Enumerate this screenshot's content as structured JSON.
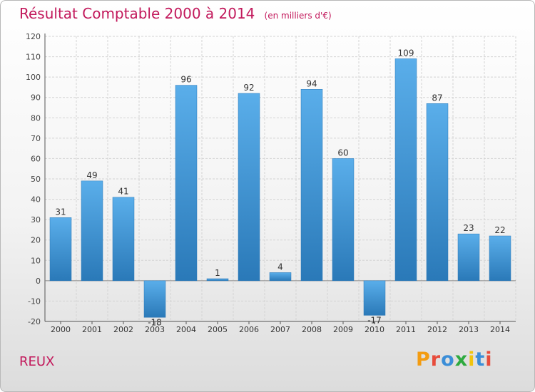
{
  "header": {
    "title": "Résultat Comptable 2000 à 2014",
    "subtitle": "(en milliers d'€)"
  },
  "commune": "REUX",
  "logo": {
    "letters": [
      "P",
      "r",
      "o",
      "x",
      "i",
      "t",
      "i"
    ],
    "colors": [
      "#f39c12",
      "#e74c3c",
      "#3b8ed8",
      "#2eaa3f",
      "#f1c40f",
      "#3b8ed8",
      "#e74c3c"
    ]
  },
  "chart_data": {
    "type": "bar",
    "title": "Résultat Comptable 2000 à 2014",
    "subtitle": "(en milliers d'€)",
    "xlabel": "",
    "ylabel": "",
    "categories": [
      "2000",
      "2001",
      "2002",
      "2003",
      "2004",
      "2005",
      "2006",
      "2007",
      "2008",
      "2009",
      "2010",
      "2011",
      "2012",
      "2013",
      "2014"
    ],
    "values": [
      31,
      49,
      41,
      -18,
      96,
      1,
      92,
      4,
      94,
      60,
      -17,
      109,
      87,
      23,
      22
    ],
    "ylim": [
      -20,
      120
    ],
    "yticks": [
      -20,
      -10,
      0,
      10,
      20,
      30,
      40,
      50,
      60,
      70,
      80,
      90,
      100,
      110,
      120
    ],
    "grid": true,
    "bar_color": "#3f95d6"
  }
}
